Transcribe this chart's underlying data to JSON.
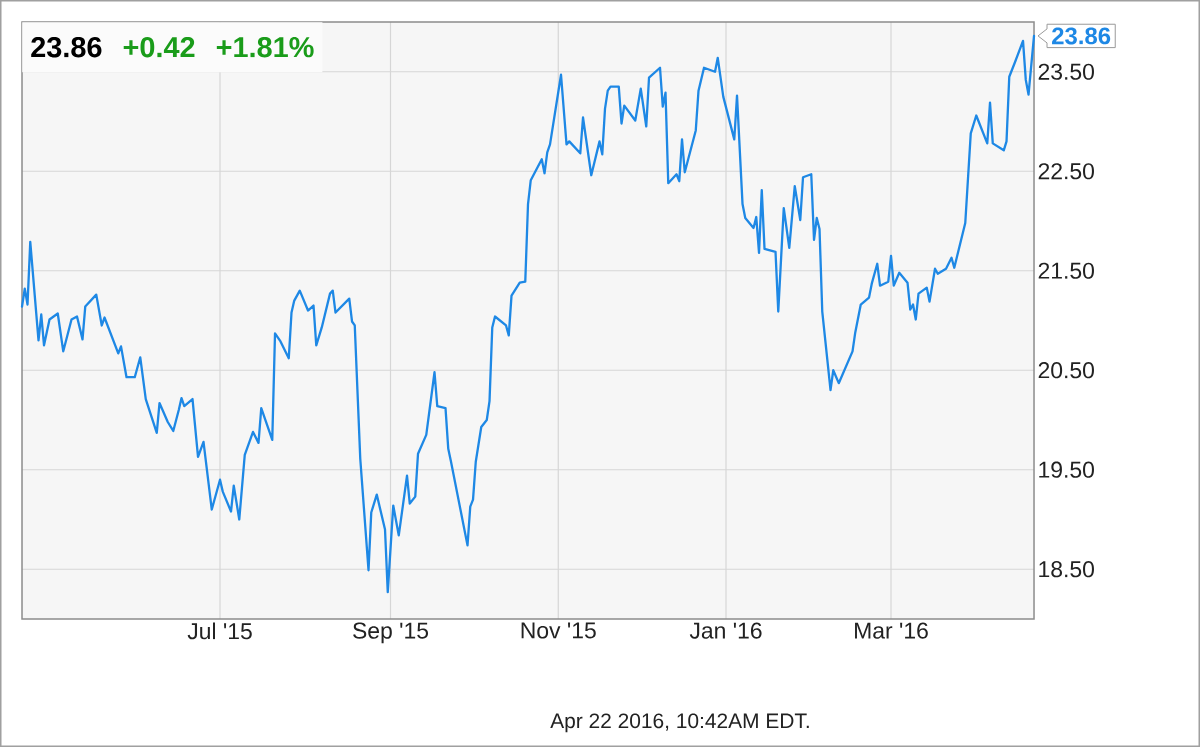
{
  "chart_data": {
    "type": "line",
    "title": "23.86",
    "annotations": [
      "+0.42",
      "+1.81%",
      "Apr 22 2016, 10:42AM EDT.",
      {
        "text": "23.86",
        "x": "2016-04-22",
        "y": 23.86
      }
    ],
    "x": [
      "2015-04-20",
      "2015-04-21",
      "2015-04-22",
      "2015-04-23",
      "2015-04-26",
      "2015-04-27",
      "2015-04-28",
      "2015-04-30",
      "2015-05-03",
      "2015-05-05",
      "2015-05-08",
      "2015-05-10",
      "2015-05-12",
      "2015-05-13",
      "2015-05-17",
      "2015-05-19",
      "2015-05-20",
      "2015-05-25",
      "2015-05-26",
      "2015-05-28",
      "2015-05-31",
      "2015-06-02",
      "2015-06-04",
      "2015-06-08",
      "2015-06-09",
      "2015-06-12",
      "2015-06-14",
      "2015-06-16",
      "2015-06-17",
      "2015-06-18",
      "2015-06-21",
      "2015-06-23",
      "2015-06-25",
      "2015-06-28",
      "2015-07-01",
      "2015-07-02",
      "2015-07-05",
      "2015-07-06",
      "2015-07-08",
      "2015-07-10",
      "2015-07-13",
      "2015-07-15",
      "2015-07-16",
      "2015-07-20",
      "2015-07-21",
      "2015-07-23",
      "2015-07-26",
      "2015-07-27",
      "2015-07-28",
      "2015-07-30",
      "2015-08-02",
      "2015-08-04",
      "2015-08-05",
      "2015-08-07",
      "2015-08-10",
      "2015-08-11",
      "2015-08-12",
      "2015-08-17",
      "2015-08-18",
      "2015-08-19",
      "2015-08-21",
      "2015-08-24",
      "2015-08-25",
      "2015-08-27",
      "2015-08-30",
      "2015-08-31",
      "2015-09-02",
      "2015-09-04",
      "2015-09-07",
      "2015-09-08",
      "2015-09-10",
      "2015-09-11",
      "2015-09-14",
      "2015-09-17",
      "2015-09-18",
      "2015-09-21",
      "2015-09-22",
      "2015-09-23",
      "2015-09-29",
      "2015-09-30",
      "2015-10-01",
      "2015-10-02",
      "2015-10-04",
      "2015-10-06",
      "2015-10-07",
      "2015-10-08",
      "2015-10-09",
      "2015-10-13",
      "2015-10-14",
      "2015-10-15",
      "2015-10-18",
      "2015-10-20",
      "2015-10-21",
      "2015-10-22",
      "2015-10-26",
      "2015-10-27",
      "2015-10-28",
      "2015-10-29",
      "2015-11-02",
      "2015-11-04",
      "2015-11-05",
      "2015-11-09",
      "2015-11-10",
      "2015-11-13",
      "2015-11-16",
      "2015-11-17",
      "2015-11-18",
      "2015-11-19",
      "2015-11-20",
      "2015-11-23",
      "2015-11-24",
      "2015-11-25",
      "2015-11-29",
      "2015-12-01",
      "2015-12-03",
      "2015-12-04",
      "2015-12-08",
      "2015-12-09",
      "2015-12-10",
      "2015-12-11",
      "2015-12-14",
      "2015-12-15",
      "2015-12-16",
      "2015-12-17",
      "2015-12-21",
      "2015-12-22",
      "2015-12-24",
      "2015-12-28",
      "2015-12-29",
      "2015-12-31",
      "2016-01-04",
      "2016-01-05",
      "2016-01-07",
      "2016-01-08",
      "2016-01-11",
      "2016-01-12",
      "2016-01-13",
      "2016-01-14",
      "2016-01-15",
      "2016-01-19",
      "2016-01-20",
      "2016-01-22",
      "2016-01-24",
      "2016-01-26",
      "2016-01-28",
      "2016-01-29",
      "2016-02-01",
      "2016-02-02",
      "2016-02-03",
      "2016-02-04",
      "2016-02-05",
      "2016-02-08",
      "2016-02-09",
      "2016-02-11",
      "2016-02-16",
      "2016-02-17",
      "2016-02-19",
      "2016-02-22",
      "2016-02-23",
      "2016-02-25",
      "2016-02-26",
      "2016-02-29",
      "2016-03-01",
      "2016-03-02",
      "2016-03-04",
      "2016-03-07",
      "2016-03-08",
      "2016-03-09",
      "2016-03-10",
      "2016-03-11",
      "2016-03-14",
      "2016-03-15",
      "2016-03-17",
      "2016-03-18",
      "2016-03-21",
      "2016-03-23",
      "2016-03-24",
      "2016-03-28",
      "2016-03-30",
      "2016-04-01",
      "2016-04-05",
      "2016-04-06",
      "2016-04-07",
      "2016-04-11",
      "2016-04-12",
      "2016-04-13",
      "2016-04-15",
      "2016-04-18",
      "2016-04-19",
      "2016-04-20",
      "2016-04-22"
    ],
    "series": [
      {
        "color": "#1e88e5",
        "values": [
          21.14,
          21.32,
          21.16,
          21.79,
          20.8,
          21.06,
          20.75,
          21.01,
          21.07,
          20.69,
          21.01,
          21.04,
          20.81,
          21.14,
          21.26,
          20.95,
          21.03,
          20.67,
          20.74,
          20.43,
          20.43,
          20.63,
          20.21,
          19.87,
          20.17,
          19.98,
          19.89,
          20.1,
          20.22,
          20.14,
          20.21,
          19.63,
          19.78,
          19.1,
          19.4,
          19.28,
          19.08,
          19.34,
          19.0,
          19.65,
          19.88,
          19.77,
          20.12,
          19.8,
          20.87,
          20.79,
          20.62,
          21.08,
          21.2,
          21.3,
          21.1,
          21.15,
          20.75,
          20.93,
          21.27,
          21.3,
          21.08,
          21.22,
          20.99,
          20.95,
          19.61,
          18.49,
          19.07,
          19.25,
          18.9,
          18.27,
          19.14,
          18.84,
          19.44,
          19.16,
          19.23,
          19.66,
          19.85,
          20.48,
          20.14,
          20.12,
          19.71,
          19.58,
          18.74,
          19.13,
          19.2,
          19.58,
          19.93,
          20.0,
          20.19,
          20.93,
          21.04,
          20.95,
          20.85,
          21.25,
          21.38,
          21.39,
          22.17,
          22.41,
          22.62,
          22.48,
          22.69,
          22.77,
          23.47,
          22.77,
          22.8,
          22.68,
          23.04,
          22.46,
          22.8,
          22.67,
          23.13,
          23.31,
          23.35,
          23.35,
          22.98,
          23.16,
          23.01,
          23.33,
          22.95,
          23.44,
          23.54,
          23.15,
          23.29,
          22.38,
          22.47,
          22.4,
          22.82,
          22.49,
          22.91,
          23.31,
          23.54,
          23.5,
          23.64,
          23.25,
          22.82,
          23.26,
          22.17,
          22.03,
          21.93,
          22.04,
          21.68,
          22.31,
          21.72,
          21.69,
          21.09,
          22.13,
          21.73,
          22.35,
          22.01,
          22.44,
          22.47,
          21.81,
          22.03,
          21.92,
          21.09,
          20.3,
          20.5,
          20.37,
          20.69,
          20.88,
          21.16,
          21.23,
          21.37,
          21.57,
          21.35,
          21.39,
          21.65,
          21.35,
          21.48,
          21.38,
          21.11,
          21.16,
          21.01,
          21.27,
          21.33,
          21.19,
          21.52,
          21.47,
          21.52,
          21.63,
          21.53,
          21.98,
          22.88,
          23.06,
          22.78,
          23.19,
          22.78,
          22.71,
          22.8,
          23.45,
          23.59,
          23.81,
          23.42,
          23.27,
          23.86
        ]
      }
    ],
    "xlim": [
      "2015-04-20",
      "2016-04-22"
    ],
    "ylim": [
      18,
      24
    ],
    "xticks": [
      {
        "value": "2015-07-01",
        "label": "Jul '15"
      },
      {
        "value": "2015-09-01",
        "label": "Sep '15"
      },
      {
        "value": "2015-11-01",
        "label": "Nov '15"
      },
      {
        "value": "2016-01-01",
        "label": "Jan '16"
      },
      {
        "value": "2016-03-01",
        "label": "Mar '16"
      }
    ],
    "yticks": [
      {
        "value": 18.5,
        "label": "18.50"
      },
      {
        "value": 19.5,
        "label": "19.50"
      },
      {
        "value": 20.5,
        "label": "20.50"
      },
      {
        "value": 21.5,
        "label": "21.50"
      },
      {
        "value": 22.5,
        "label": "22.50"
      },
      {
        "value": 23.5,
        "label": "23.50"
      }
    ],
    "grid": true,
    "marker": "none"
  }
}
